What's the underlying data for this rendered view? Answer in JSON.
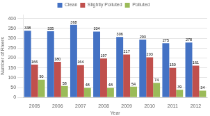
{
  "chart_data": {
    "type": "bar",
    "categories": [
      "2005",
      "2006",
      "2007",
      "2008",
      "2009",
      "2010",
      "2011",
      "2012"
    ],
    "series": [
      {
        "name": "Clean",
        "color": "#4472c4",
        "values": [
          338,
          335,
          368,
          334,
          306,
          293,
          275,
          278
        ]
      },
      {
        "name": "Slightly Polluted",
        "color": "#c0504d",
        "values": [
          166,
          180,
          164,
          197,
          217,
          203,
          150,
          161
        ]
      },
      {
        "name": "Polluted",
        "color": "#9bbb59",
        "values": [
          90,
          58,
          48,
          48,
          54,
          74,
          39,
          34
        ]
      }
    ],
    "xlabel": "Year",
    "ylabel": "Number of Rivers",
    "ylim": [
      0,
      420
    ],
    "yticks": [
      0,
      50,
      100,
      150,
      200,
      250,
      300,
      350,
      400
    ],
    "grid": true,
    "legend": "top",
    "data_labels": true
  }
}
